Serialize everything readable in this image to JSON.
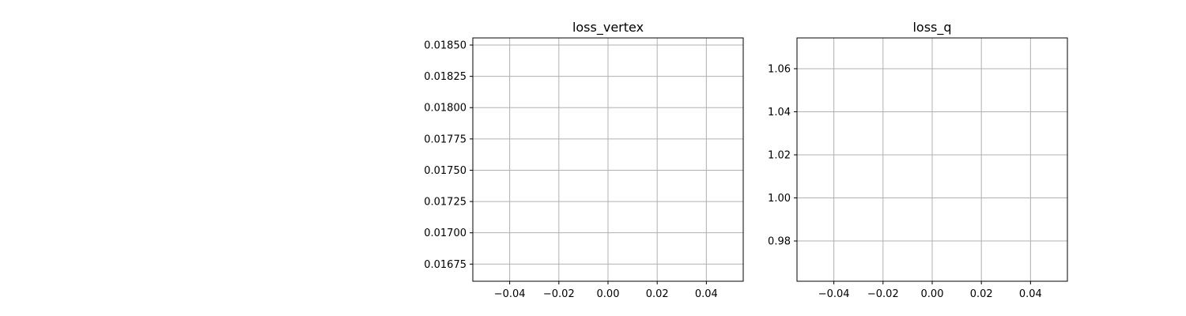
{
  "chart_data": [
    {
      "type": "line",
      "title": "loss_vertex",
      "xlabel": "",
      "ylabel": "",
      "xlim": [
        -0.055,
        0.055
      ],
      "ylim": [
        0.016613,
        0.018557
      ],
      "x_ticks": [
        -0.04,
        -0.02,
        0.0,
        0.02,
        0.04
      ],
      "x_tick_labels": [
        "−0.04",
        "−0.02",
        "0.00",
        "0.02",
        "0.04"
      ],
      "y_ticks": [
        0.01675,
        0.017,
        0.01725,
        0.0175,
        0.01775,
        0.018,
        0.01825,
        0.0185
      ],
      "y_tick_labels": [
        "0.01675",
        "0.01700",
        "0.01725",
        "0.01750",
        "0.01775",
        "0.01800",
        "0.01825",
        "0.01850"
      ],
      "grid": true,
      "series": [
        {
          "x": [],
          "y": []
        }
      ]
    },
    {
      "type": "line",
      "title": "loss_q",
      "xlabel": "",
      "ylabel": "",
      "xlim": [
        -0.055,
        0.055
      ],
      "ylim": [
        0.9613,
        1.0743
      ],
      "x_ticks": [
        -0.04,
        -0.02,
        0.0,
        0.02,
        0.04
      ],
      "x_tick_labels": [
        "−0.04",
        "−0.02",
        "0.00",
        "0.02",
        "0.04"
      ],
      "y_ticks": [
        0.98,
        1.0,
        1.02,
        1.04,
        1.06
      ],
      "y_tick_labels": [
        "0.98",
        "1.00",
        "1.02",
        "1.04",
        "1.06"
      ],
      "grid": true,
      "series": [
        {
          "x": [],
          "y": []
        }
      ]
    }
  ],
  "colors": {
    "grid": "#b0b0b0",
    "axes": "#000000",
    "text": "#000000"
  }
}
